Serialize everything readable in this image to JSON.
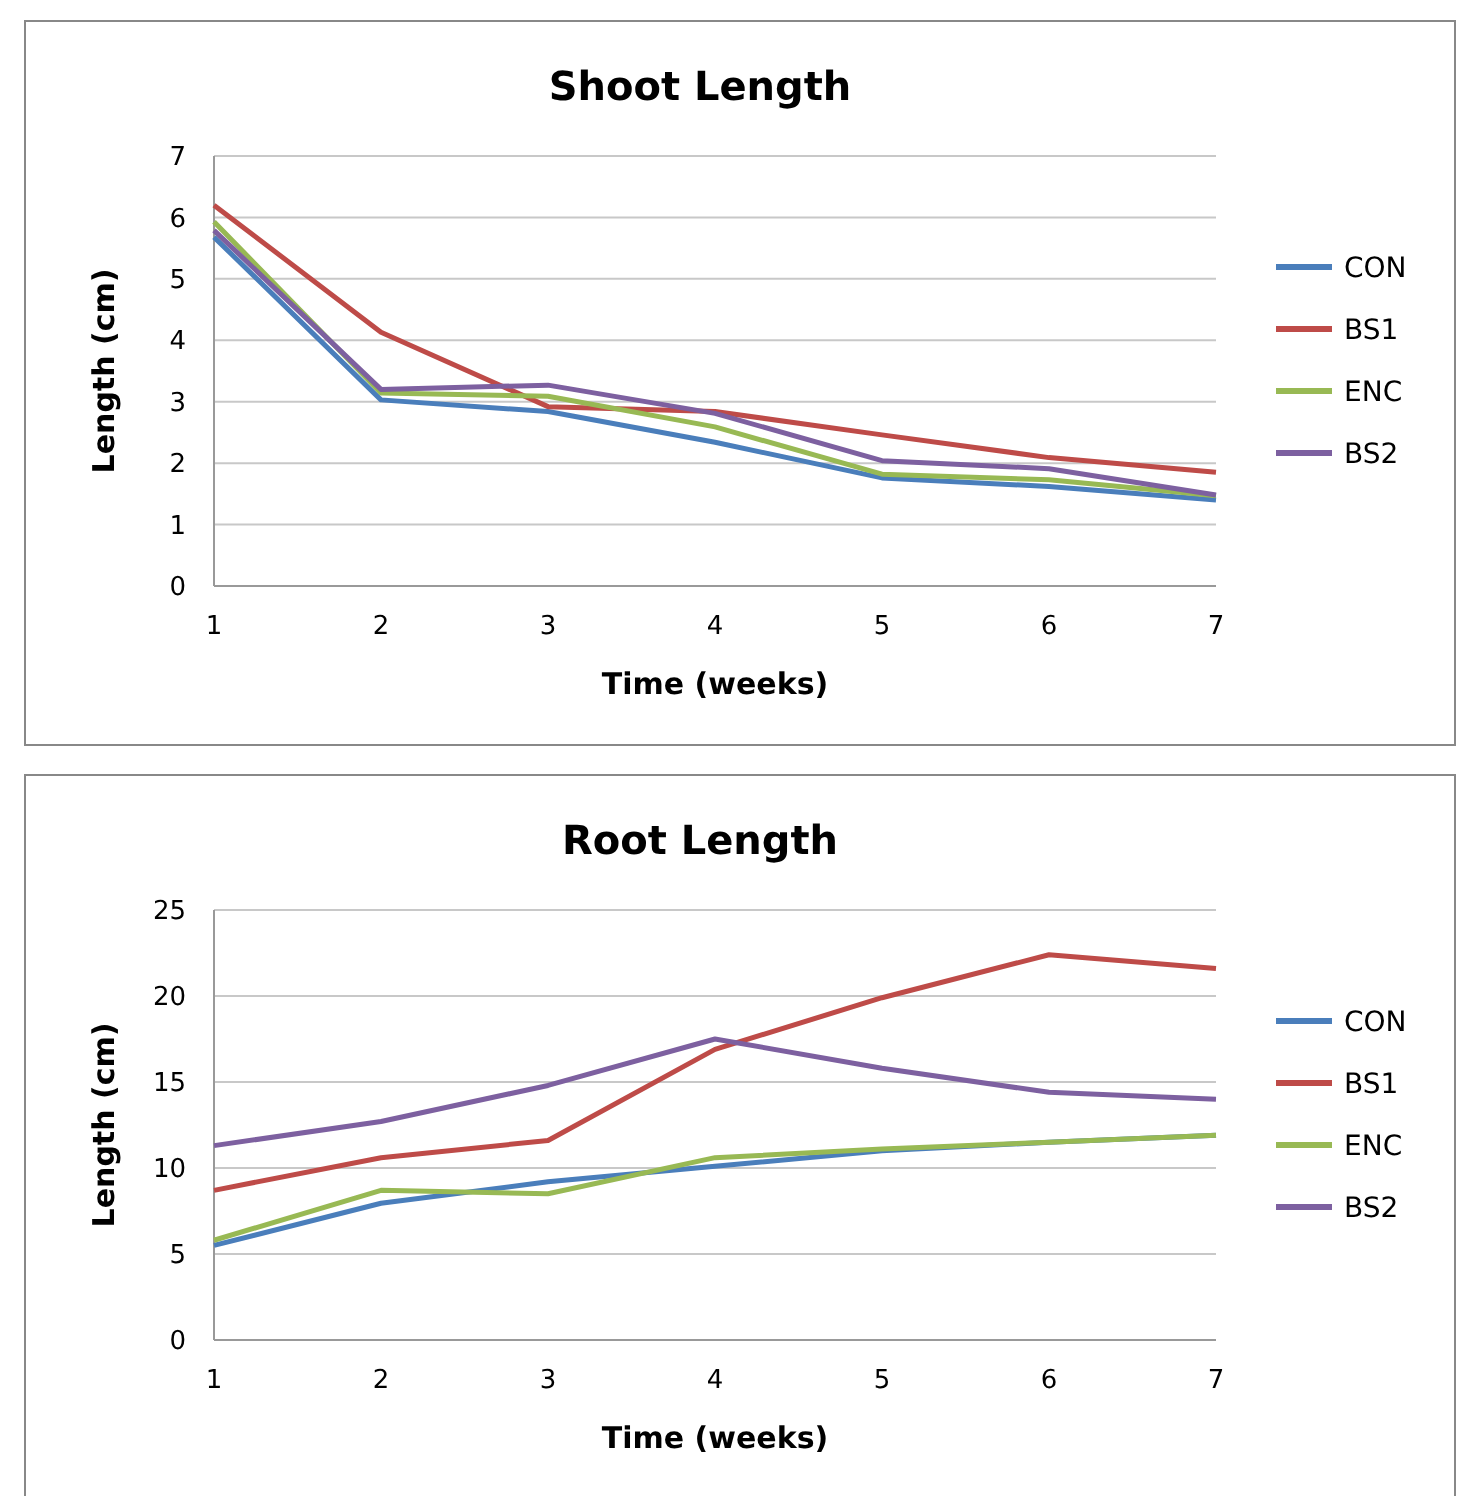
{
  "chart_data": [
    {
      "type": "line",
      "title": "Shoot Length",
      "xlabel": "Time (weeks)",
      "ylabel": "Length (cm)",
      "x": [
        1,
        2,
        3,
        4,
        5,
        6,
        7
      ],
      "xlim": [
        1,
        7
      ],
      "xticks": [
        1,
        2,
        3,
        4,
        5,
        6,
        7
      ],
      "ylim": [
        0,
        7
      ],
      "yticks": [
        0,
        1,
        2,
        3,
        4,
        5,
        6,
        7
      ],
      "grid": "y",
      "legend": "right",
      "marker": "none",
      "series": [
        {
          "name": "CON",
          "color": "#4a7ebb",
          "values": [
            5.68,
            3.03,
            2.84,
            2.34,
            1.76,
            1.62,
            1.4
          ]
        },
        {
          "name": "BS1",
          "color": "#be4b48",
          "values": [
            6.2,
            4.13,
            2.92,
            2.84,
            2.46,
            2.09,
            1.85
          ]
        },
        {
          "name": "ENC",
          "color": "#98b954",
          "values": [
            5.93,
            3.14,
            3.09,
            2.59,
            1.82,
            1.73,
            1.47
          ]
        },
        {
          "name": "BS2",
          "color": "#7d60a0",
          "values": [
            5.79,
            3.2,
            3.27,
            2.81,
            2.04,
            1.91,
            1.48
          ]
        }
      ]
    },
    {
      "type": "line",
      "title": "Root Length",
      "xlabel": "Time (weeks)",
      "ylabel": "Length (cm)",
      "x": [
        1,
        2,
        3,
        4,
        5,
        6,
        7
      ],
      "xlim": [
        1,
        7
      ],
      "xticks": [
        1,
        2,
        3,
        4,
        5,
        6,
        7
      ],
      "ylim": [
        0,
        25
      ],
      "yticks": [
        0,
        5,
        10,
        15,
        20,
        25
      ],
      "grid": "y",
      "legend": "right",
      "marker": "none",
      "series": [
        {
          "name": "CON",
          "color": "#4a7ebb",
          "values": [
            5.5,
            7.95,
            9.2,
            10.1,
            11,
            11.5,
            11.9
          ]
        },
        {
          "name": "BS1",
          "color": "#be4b48",
          "values": [
            8.7,
            10.6,
            11.6,
            16.9,
            19.9,
            22.4,
            21.6
          ]
        },
        {
          "name": "ENC",
          "color": "#98b954",
          "values": [
            5.8,
            8.7,
            8.5,
            10.6,
            11.1,
            11.5,
            11.9
          ]
        },
        {
          "name": "BS2",
          "color": "#7d60a0",
          "values": [
            11.3,
            12.7,
            14.8,
            17.5,
            15.8,
            14.4,
            14
          ]
        }
      ]
    }
  ]
}
